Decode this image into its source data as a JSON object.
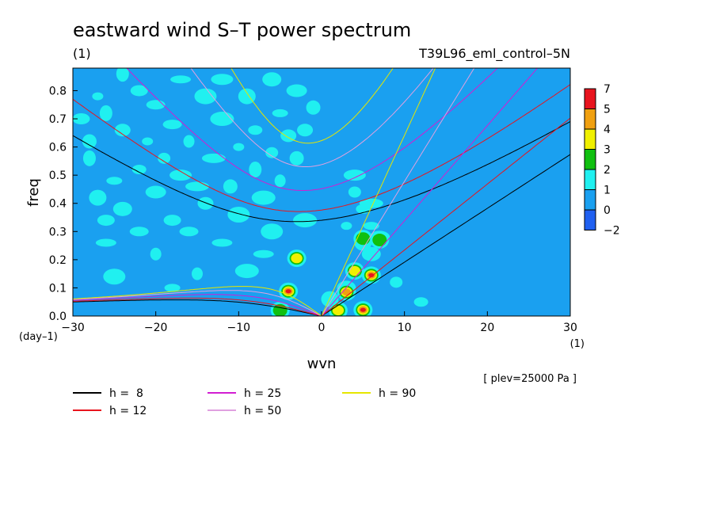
{
  "chart_data": {
    "type": "heatmap",
    "title": "eastward wind S–T power spectrum",
    "subtitle_left": "(1)",
    "subtitle_right": "T39L96_eml_control–5N",
    "xlabel": "wvn",
    "ylabel": "freq",
    "x_unit": "(1)",
    "y_unit": "(day–1)",
    "xlim": [
      -30,
      30
    ],
    "ylim": [
      0,
      0.88
    ],
    "x_ticks": [
      -30,
      -20,
      -10,
      0,
      10,
      20,
      30
    ],
    "x_tick_labels": [
      "−30",
      "−20",
      "−10",
      "0",
      "10",
      "20",
      "30"
    ],
    "y_ticks": [
      0.0,
      0.1,
      0.2,
      0.3,
      0.4,
      0.5,
      0.6,
      0.7,
      0.8
    ],
    "y_tick_labels": [
      "0.0",
      "0.1",
      "0.2",
      "0.3",
      "0.4",
      "0.5",
      "0.6",
      "0.7",
      "0.8"
    ],
    "annotation": "[ plev=25000 Pa ]",
    "colorbar": {
      "levels": [
        "7",
        "5",
        "4",
        "3",
        "2",
        "1",
        "0",
        "−2"
      ],
      "colors": [
        "#e8141e",
        "#f0a010",
        "#f0f000",
        "#10c010",
        "#20f0f0",
        "#1aa0f0",
        "#2060f0"
      ],
      "position": "right"
    },
    "background_color": "#1aa0f0",
    "patches_level1": [
      [
        -27,
        0.78
      ],
      [
        -26,
        0.72
      ],
      [
        -28,
        0.62
      ],
      [
        -24,
        0.66
      ],
      [
        -22,
        0.8
      ],
      [
        -20,
        0.75
      ],
      [
        -17,
        0.84
      ],
      [
        -14,
        0.78
      ],
      [
        -12,
        0.7
      ],
      [
        -16,
        0.62
      ],
      [
        -19,
        0.56
      ],
      [
        -22,
        0.52
      ],
      [
        -25,
        0.48
      ],
      [
        -27,
        0.42
      ],
      [
        -24,
        0.38
      ],
      [
        -20,
        0.44
      ],
      [
        -17,
        0.5
      ],
      [
        -13,
        0.56
      ],
      [
        -10,
        0.6
      ],
      [
        -8,
        0.52
      ],
      [
        -11,
        0.46
      ],
      [
        -14,
        0.4
      ],
      [
        -18,
        0.34
      ],
      [
        -22,
        0.3
      ],
      [
        -26,
        0.26
      ],
      [
        -10,
        0.36
      ],
      [
        -7,
        0.42
      ],
      [
        -5,
        0.48
      ],
      [
        -6,
        0.58
      ],
      [
        -8,
        0.66
      ],
      [
        -5,
        0.72
      ],
      [
        -9,
        0.78
      ],
      [
        -6,
        0.84
      ],
      [
        -3,
        0.8
      ],
      [
        -12,
        0.84
      ],
      [
        -15,
        0.46
      ],
      [
        -21,
        0.62
      ],
      [
        -28,
        0.56
      ],
      [
        -3,
        0.56
      ],
      [
        -4,
        0.64
      ],
      [
        -26,
        0.34
      ],
      [
        -16,
        0.3
      ],
      [
        -12,
        0.26
      ],
      [
        -6,
        0.3
      ],
      [
        -2,
        0.34
      ],
      [
        -20,
        0.22
      ],
      [
        4,
        0.44
      ],
      [
        5,
        0.38
      ],
      [
        6,
        0.32
      ],
      [
        5,
        0.26
      ],
      [
        6,
        0.22
      ],
      [
        7,
        0.28
      ],
      [
        4,
        0.5
      ],
      [
        6,
        0.4
      ],
      [
        3,
        0.32
      ],
      [
        -24,
        0.86
      ],
      [
        -1,
        0.74
      ],
      [
        -2,
        0.66
      ],
      [
        -29,
        0.7
      ],
      [
        -18,
        0.68
      ],
      [
        -7,
        0.22
      ],
      [
        -25,
        0.14
      ],
      [
        -9,
        0.16
      ],
      [
        -15,
        0.15
      ],
      [
        9,
        0.12
      ],
      [
        12,
        0.05
      ],
      [
        -18,
        0.1
      ],
      [
        1,
        0.06
      ],
      [
        3,
        0.1
      ]
    ],
    "hotspots": [
      {
        "wvn": -4,
        "freq": 0.088,
        "peak": "7"
      },
      {
        "wvn": 5,
        "freq": 0.022,
        "peak": "7"
      },
      {
        "wvn": 3,
        "freq": 0.085,
        "peak": "4"
      },
      {
        "wvn": 6,
        "freq": 0.145,
        "peak": "7"
      },
      {
        "wvn": 4,
        "freq": 0.16,
        "peak": "3"
      },
      {
        "wvn": 2,
        "freq": 0.02,
        "peak": "3"
      },
      {
        "wvn": -3,
        "freq": 0.205,
        "peak": "3"
      },
      {
        "wvn": 5,
        "freq": 0.275,
        "peak": "2"
      },
      {
        "wvn": 7,
        "freq": 0.27,
        "peak": "2"
      },
      {
        "wvn": -5,
        "freq": 0.02,
        "peak": "2"
      }
    ],
    "dispersion_curves": [
      {
        "name": "h =  8",
        "h": 8,
        "color": "#000000"
      },
      {
        "name": "h = 12",
        "h": 12,
        "color": "#e8141e"
      },
      {
        "name": "h = 25",
        "h": 25,
        "color": "#d21ed2"
      },
      {
        "name": "h = 50",
        "h": 50,
        "color": "#e0a0e0"
      },
      {
        "name": "h = 90",
        "h": 90,
        "color": "#e6e600"
      }
    ]
  }
}
